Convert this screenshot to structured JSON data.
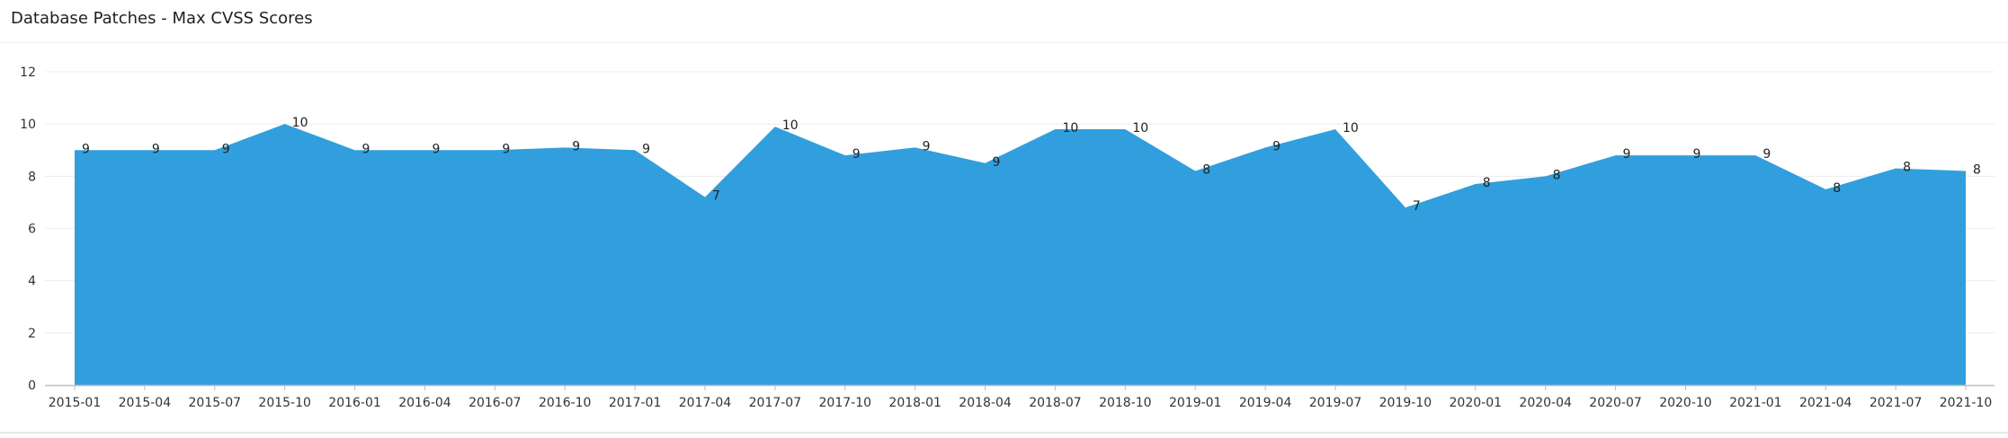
{
  "panel": {
    "title": "Database Patches - Max CVSS Scores"
  },
  "chart_data": {
    "type": "area",
    "title": "Database Patches - Max CVSS Scores",
    "xlabel": "",
    "ylabel": "",
    "categories": [
      "2015-01",
      "2015-04",
      "2015-07",
      "2015-10",
      "2016-01",
      "2016-04",
      "2016-07",
      "2016-10",
      "2017-01",
      "2017-04",
      "2017-07",
      "2017-10",
      "2018-01",
      "2018-04",
      "2018-07",
      "2018-10",
      "2019-01",
      "2019-04",
      "2019-07",
      "2019-10",
      "2020-01",
      "2020-04",
      "2020-07",
      "2020-10",
      "2021-01",
      "2021-04",
      "2021-07",
      "2021-10"
    ],
    "values": [
      9,
      9,
      9,
      10,
      9,
      9,
      9,
      9.1,
      9,
      7.2,
      9.9,
      8.8,
      9.1,
      8.5,
      9.8,
      9.8,
      8.2,
      9.1,
      9.8,
      6.8,
      7.7,
      8,
      8.8,
      8.8,
      8.8,
      7.5,
      8.3,
      8.2
    ],
    "data_labels": [
      "9",
      "9",
      "9",
      "10",
      "9",
      "9",
      "9",
      "9",
      "9",
      "7",
      "10",
      "9",
      "9",
      "9",
      "10",
      "10",
      "8",
      "9",
      "10",
      "7",
      "8",
      "8",
      "9",
      "9",
      "9",
      "8",
      "8",
      "8"
    ],
    "yticks": [
      "0",
      "2",
      "4",
      "6",
      "8",
      "10",
      "12"
    ],
    "ylim": [
      0,
      12
    ],
    "grid": true,
    "fill_color": "#319fdd",
    "legend": "none"
  }
}
